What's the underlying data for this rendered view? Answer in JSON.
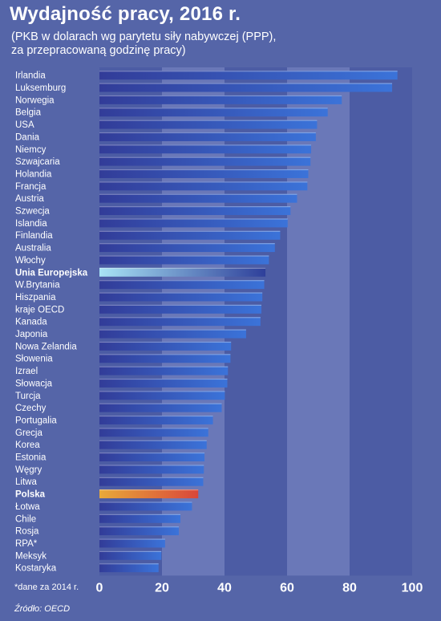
{
  "title": "Wydajność pracy, 2016 r.",
  "subtitle_line1": "(PKB w dolarach wg parytetu siły nabywczej (PPP),",
  "subtitle_line2": "za przepracowaną godzinę pracy)",
  "note": "*dane za 2014 r.",
  "source": "Źródło:  OECD",
  "colors": {
    "background": "#5565a8",
    "plot_band_light": "#6a78b8",
    "bar_default": "#3b73d9",
    "bar_highlight_eu": "#a9e4f5",
    "bar_highlight_pl": "#e8a93a"
  },
  "chart_data": {
    "type": "bar",
    "orientation": "horizontal",
    "categories": [
      "Irlandia",
      "Luksemburg",
      "Norwegia",
      "Belgia",
      "USA",
      "Dania",
      "Niemcy",
      "Szwajcaria",
      "Holandia",
      "Francja",
      "Austria",
      "Szwecja",
      "Islandia",
      "Finlandia",
      "Australia",
      "Włochy",
      "Unia Europejska",
      "W.Brytania",
      "Hiszpania",
      "kraje OECD",
      "Kanada",
      "Japonia",
      "Nowa Zelandia",
      "Słowenia",
      "Izrael",
      "Słowacja",
      "Turcja",
      "Czechy",
      "Portugalia",
      "Grecja",
      "Korea",
      "Estonia",
      "Węgry",
      "Litwa",
      "Polska",
      "Łotwa",
      "Chile",
      "Rosja",
      "RPA*",
      "Meksyk",
      "Kostaryka"
    ],
    "values": [
      95.3,
      93.6,
      77.5,
      73.0,
      69.6,
      69.2,
      67.7,
      67.5,
      66.8,
      66.5,
      63.2,
      61.1,
      60.2,
      57.8,
      56.1,
      54.2,
      53.1,
      52.7,
      52.1,
      51.8,
      51.5,
      46.9,
      42.1,
      41.9,
      41.1,
      40.9,
      40.1,
      39.1,
      36.3,
      34.8,
      34.3,
      33.6,
      33.4,
      33.2,
      31.6,
      29.6,
      25.9,
      25.4,
      21.0,
      19.8,
      18.9
    ],
    "highlight": {
      "Unia Europejska": "eu",
      "Polska": "pl"
    },
    "bold_labels": [
      "Unia Europejska",
      "Polska"
    ],
    "xticks": [
      0,
      20,
      40,
      60,
      80,
      100
    ],
    "xlim": [
      0,
      100
    ]
  }
}
